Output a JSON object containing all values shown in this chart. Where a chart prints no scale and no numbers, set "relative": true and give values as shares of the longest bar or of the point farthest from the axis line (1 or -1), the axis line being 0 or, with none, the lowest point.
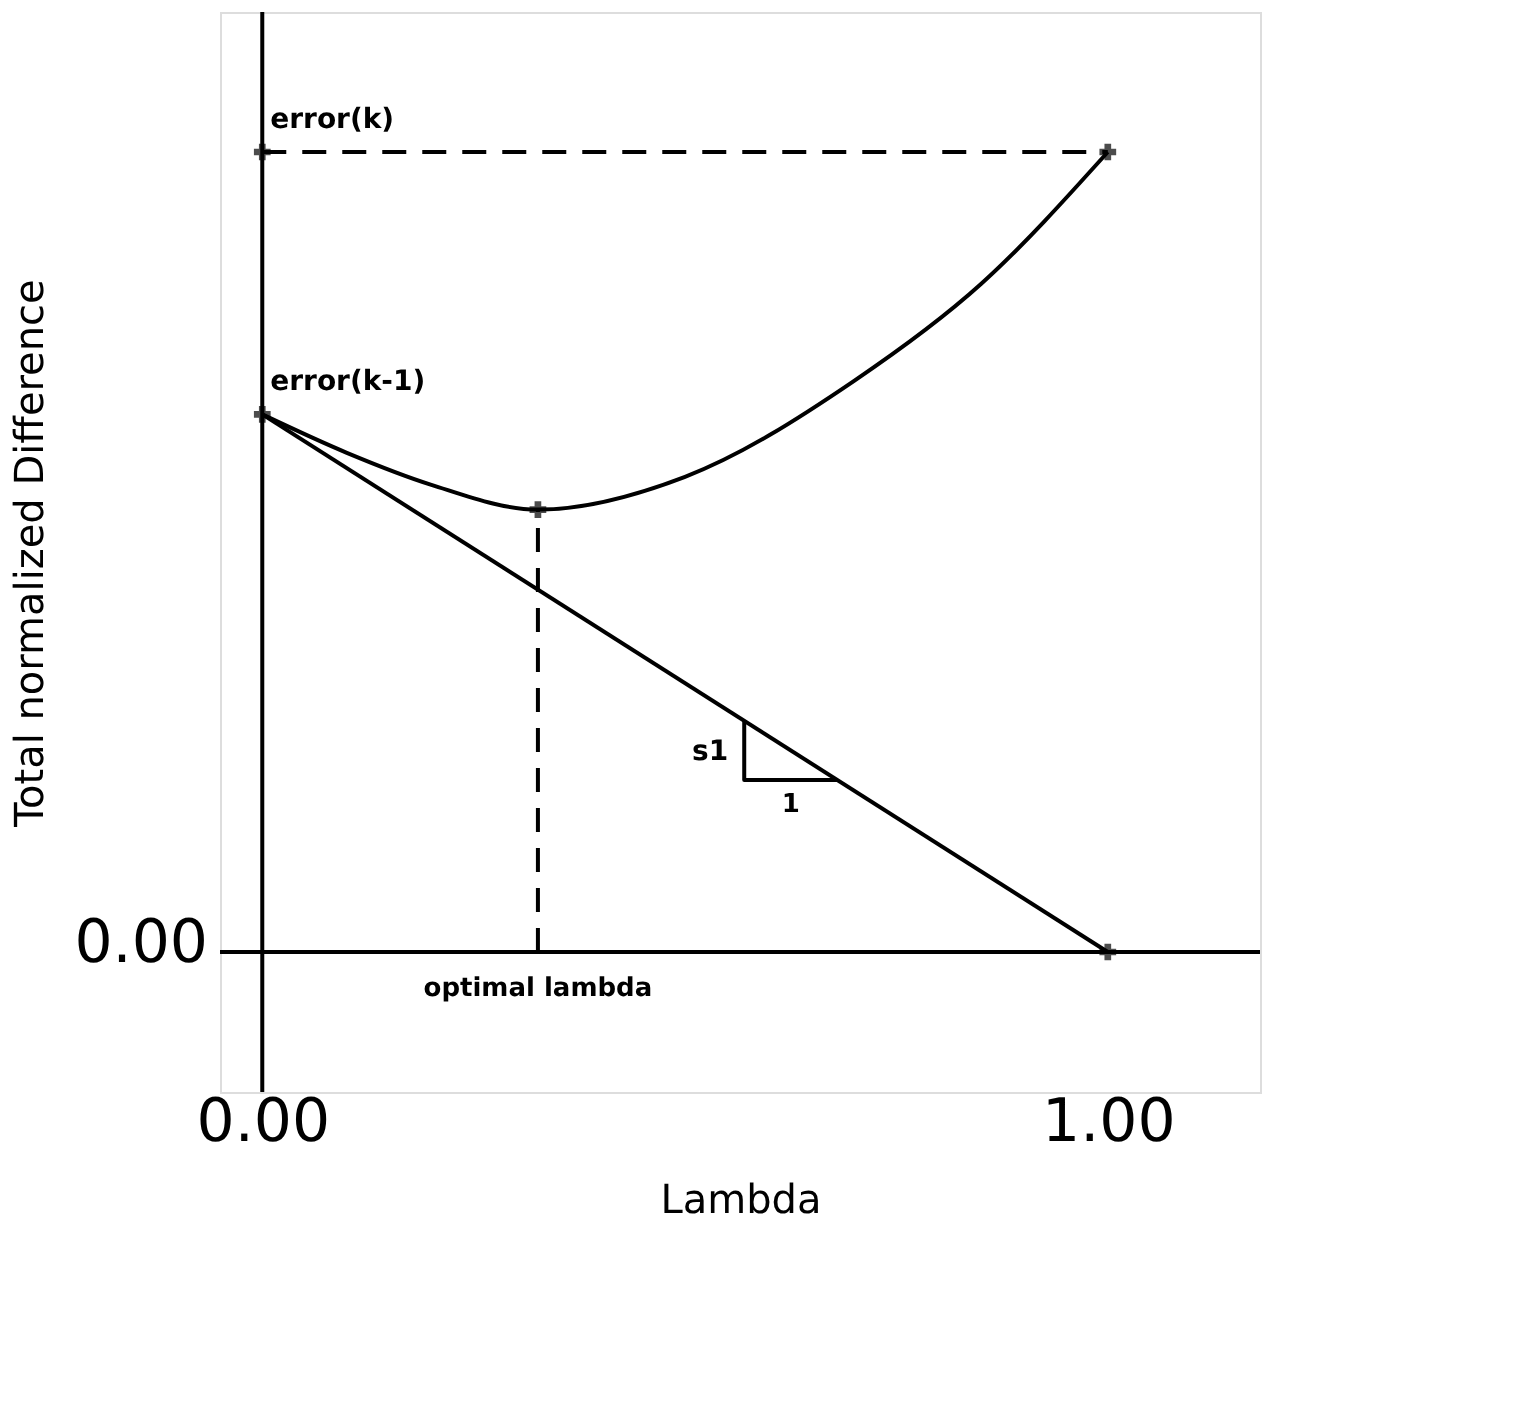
{
  "chart_data": {
    "type": "line",
    "relative": true,
    "xlabel": "Lambda",
    "ylabel": "Total normalized Difference",
    "xlim": [
      -0.05,
      1.18
    ],
    "xticks": [
      {
        "value": 0,
        "label": "0.00"
      },
      {
        "value": 1,
        "label": "1.00"
      }
    ],
    "series": [
      {
        "type": "line",
        "color": "#000000",
        "line_style": "solid",
        "x": [
          0,
          0.1,
          0.2,
          0.326,
          0.5,
          0.7,
          0.85,
          1.0
        ],
        "values": [
          0.672,
          0.624,
          0.584,
          0.553,
          0.594,
          0.714,
          0.835,
          1.0
        ]
      },
      {
        "type": "line",
        "color": "#000000",
        "line_style": "solid",
        "x": [
          0,
          1
        ],
        "values": [
          0.672,
          0
        ]
      },
      {
        "type": "line",
        "color": "#000000",
        "line_style": "dashed",
        "x": [
          0,
          1
        ],
        "values": [
          1,
          1
        ]
      },
      {
        "type": "line",
        "color": "#000000",
        "line_style": "dashed",
        "x": [
          0.326,
          0.326
        ],
        "values": [
          0,
          0.553
        ]
      },
      {
        "type": "line",
        "color": "#000000",
        "line_style": "solid",
        "x": [
          0.57,
          0.57,
          0.68
        ],
        "values": [
          0.289,
          0.215,
          0.215
        ]
      },
      {
        "type": "scatter",
        "color": "#000000",
        "marker": "cross",
        "x": [
          0,
          0,
          0.326,
          1,
          1
        ],
        "values": [
          1,
          0.672,
          0.553,
          1,
          0
        ]
      }
    ],
    "annotations": [
      {
        "text": "error(k)",
        "x": 0,
        "y": 1
      },
      {
        "text": "error(k-1)",
        "x": 0,
        "y": 0.672
      },
      {
        "text": "optimal lambda",
        "x": 0.326,
        "y": 0
      },
      {
        "text": "s1",
        "x": 0.57,
        "y": 0.25
      },
      {
        "text": "1",
        "x": 0.625,
        "y": 0.215
      },
      "0.00"
    ],
    "grid": false
  }
}
